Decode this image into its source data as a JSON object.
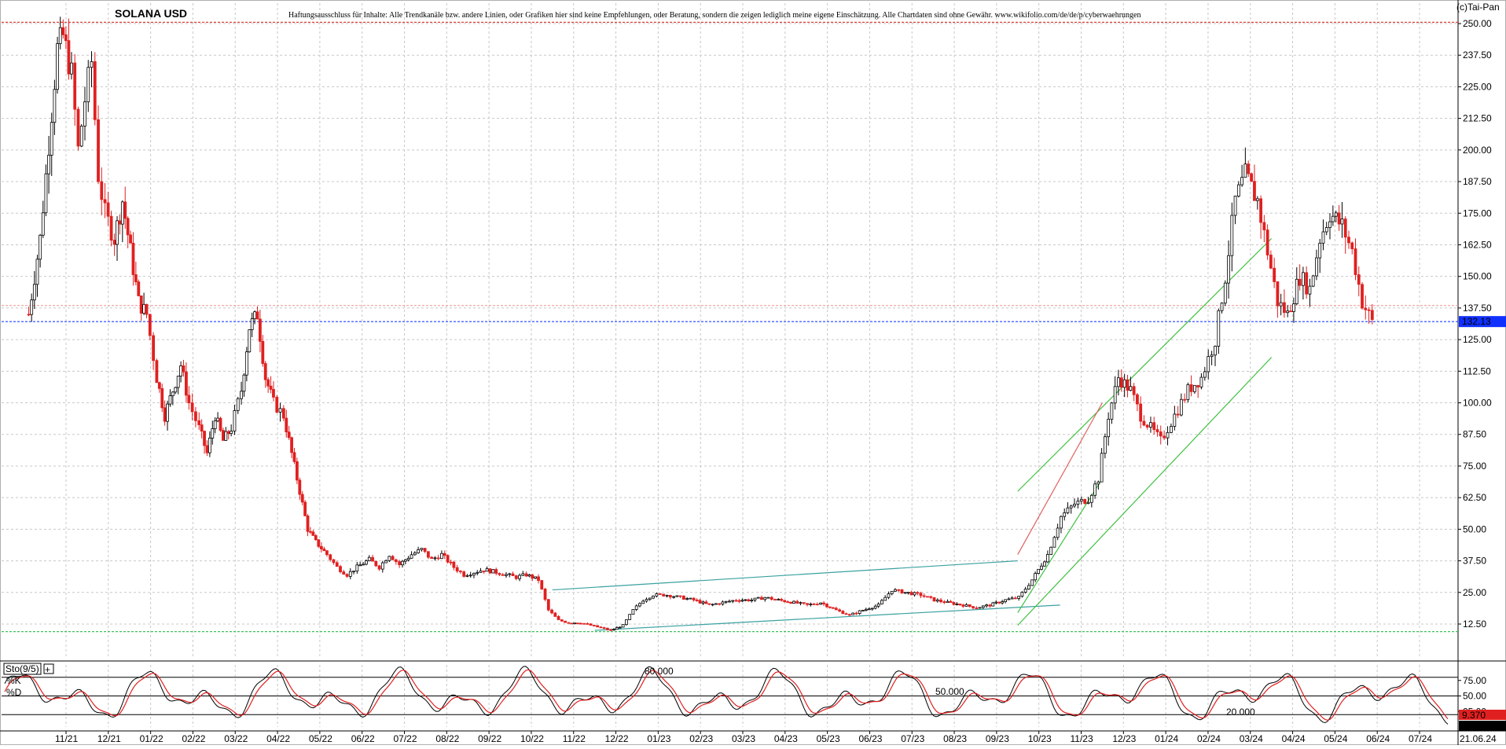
{
  "chart_data": {
    "type": "candlestick",
    "symbol": "SOLANA USD",
    "disclaimer": "Haftungsausschluss für Inhalte: Alle Trendkanäle bzw. andere Linien, oder Grafiken hier sind keine Empfehlungen, oder Beratung, sondern die zeigen lediglich meine eigene Einschätzung. Alle Chartdaten sind ohne Gewähr. www.wikifolio.com/de/de/p/cyberwaehrungen",
    "copyright": "(c)Tai-Pan",
    "y_ticks": [
      "250.00",
      "237.50",
      "225.00",
      "212.50",
      "200.00",
      "187.50",
      "175.00",
      "162.50",
      "150.00",
      "137.50",
      "125.00",
      "112.50",
      "100.00",
      "87.50",
      "75.00",
      "62.50",
      "50.00",
      "37.50",
      "25.00",
      "12.50"
    ],
    "ylim": [
      0,
      250
    ],
    "x_ticks": [
      "11/21",
      "12/21",
      "01/22",
      "02/22",
      "03/22",
      "04/22",
      "05/22",
      "06/22",
      "07/22",
      "08/22",
      "09/22",
      "10/22",
      "11/22",
      "12/22",
      "01/23",
      "02/23",
      "03/23",
      "04/23",
      "05/23",
      "06/23",
      "07/23",
      "08/23",
      "09/23",
      "10/23",
      "11/23",
      "12/23",
      "01/24",
      "02/24",
      "03/24",
      "04/24",
      "05/24",
      "06/24",
      "07/24"
    ],
    "x_last_date": "21.06.24",
    "last_price": "132.13",
    "price_path": [
      [
        "11/21",
        135
      ],
      [
        "11/21",
        150
      ],
      [
        "11/21",
        165
      ],
      [
        "11/21",
        190
      ],
      [
        "11/21",
        215
      ],
      [
        "11/21",
        240
      ],
      [
        "11/21",
        245
      ],
      [
        "12/21",
        230
      ],
      [
        "12/21",
        200
      ],
      [
        "12/21",
        220
      ],
      [
        "12/21",
        235
      ],
      [
        "12/21",
        190
      ],
      [
        "12/21",
        175
      ],
      [
        "01/22",
        165
      ],
      [
        "01/22",
        180
      ],
      [
        "01/22",
        160
      ],
      [
        "01/22",
        140
      ],
      [
        "01/22",
        135
      ],
      [
        "02/22",
        110
      ],
      [
        "02/22",
        95
      ],
      [
        "02/22",
        105
      ],
      [
        "02/22",
        115
      ],
      [
        "02/22",
        100
      ],
      [
        "03/22",
        90
      ],
      [
        "03/22",
        80
      ],
      [
        "03/22",
        95
      ],
      [
        "03/22",
        85
      ],
      [
        "03/22",
        90
      ],
      [
        "04/22",
        105
      ],
      [
        "04/22",
        130
      ],
      [
        "04/22",
        135
      ],
      [
        "04/22",
        110
      ],
      [
        "04/22",
        100
      ],
      [
        "05/22",
        95
      ],
      [
        "05/22",
        80
      ],
      [
        "05/22",
        65
      ],
      [
        "05/22",
        50
      ],
      [
        "05/22",
        45
      ],
      [
        "06/22",
        40
      ],
      [
        "06/22",
        35
      ],
      [
        "06/22",
        32
      ],
      [
        "06/22",
        35
      ],
      [
        "07/22",
        38
      ],
      [
        "07/22",
        35
      ],
      [
        "07/22",
        40
      ],
      [
        "07/22",
        36
      ],
      [
        "08/22",
        40
      ],
      [
        "08/22",
        42
      ],
      [
        "08/22",
        38
      ],
      [
        "08/22",
        40
      ],
      [
        "09/22",
        35
      ],
      [
        "09/22",
        32
      ],
      [
        "09/22",
        33
      ],
      [
        "09/22",
        34
      ],
      [
        "10/22",
        33
      ],
      [
        "10/22",
        32
      ],
      [
        "10/22",
        31
      ],
      [
        "10/22",
        32
      ],
      [
        "11/22",
        30
      ],
      [
        "11/22",
        18
      ],
      [
        "11/22",
        14
      ],
      [
        "11/22",
        13
      ],
      [
        "12/22",
        13
      ],
      [
        "12/22",
        12
      ],
      [
        "12/22",
        11
      ],
      [
        "12/22",
        10
      ],
      [
        "01/23",
        12
      ],
      [
        "01/23",
        18
      ],
      [
        "01/23",
        22
      ],
      [
        "01/23",
        24
      ],
      [
        "02/23",
        24
      ],
      [
        "02/23",
        23
      ],
      [
        "02/23",
        22
      ],
      [
        "03/23",
        20
      ],
      [
        "03/23",
        21
      ],
      [
        "03/23",
        22
      ],
      [
        "04/23",
        22
      ],
      [
        "04/23",
        23
      ],
      [
        "04/23",
        22
      ],
      [
        "05/23",
        21
      ],
      [
        "05/23",
        20
      ],
      [
        "05/23",
        21
      ],
      [
        "06/23",
        18
      ],
      [
        "06/23",
        16
      ],
      [
        "06/23",
        18
      ],
      [
        "07/23",
        20
      ],
      [
        "07/23",
        26
      ],
      [
        "07/23",
        25
      ],
      [
        "08/23",
        24
      ],
      [
        "08/23",
        22
      ],
      [
        "08/23",
        21
      ],
      [
        "09/23",
        20
      ],
      [
        "09/23",
        19
      ],
      [
        "09/23",
        20
      ],
      [
        "10/23",
        22
      ],
      [
        "10/23",
        23
      ],
      [
        "10/23",
        30
      ],
      [
        "11/23",
        40
      ],
      [
        "11/23",
        55
      ],
      [
        "11/23",
        60
      ],
      [
        "12/23",
        62
      ],
      [
        "12/23",
        70
      ],
      [
        "12/23",
        95
      ],
      [
        "12/23",
        110
      ],
      [
        "01/24",
        105
      ],
      [
        "01/24",
        95
      ],
      [
        "01/24",
        90
      ],
      [
        "01/24",
        85
      ],
      [
        "02/24",
        95
      ],
      [
        "02/24",
        105
      ],
      [
        "02/24",
        110
      ],
      [
        "03/24",
        125
      ],
      [
        "03/24",
        150
      ],
      [
        "03/24",
        180
      ],
      [
        "03/24",
        190
      ],
      [
        "04/24",
        180
      ],
      [
        "04/24",
        160
      ],
      [
        "04/24",
        140
      ],
      [
        "04/24",
        135
      ],
      [
        "05/24",
        150
      ],
      [
        "05/24",
        145
      ],
      [
        "05/24",
        165
      ],
      [
        "05/24",
        175
      ],
      [
        "06/24",
        170
      ],
      [
        "06/24",
        160
      ],
      [
        "06/24",
        140
      ],
      [
        "06/24",
        132
      ]
    ],
    "hlines": [
      {
        "value": 250.5,
        "color": "#e04040"
      },
      {
        "value": 138.5,
        "color": "#f0a0a0"
      },
      {
        "value": 132.13,
        "color": "#2040ff"
      },
      {
        "value": 9.5,
        "color": "#40c060"
      }
    ],
    "trendlines": [
      {
        "color": "#3aa0a0",
        "points": [
          [
            "11/22",
            26
          ],
          [
            "10/23",
            37.5
          ]
        ]
      },
      {
        "color": "#3aa0a0",
        "points": [
          [
            "12/22",
            10
          ],
          [
            "11/23",
            20
          ]
        ]
      },
      {
        "color": "#40c040",
        "points": [
          [
            "10/23",
            65
          ],
          [
            "04/24",
            165
          ]
        ]
      },
      {
        "color": "#40c040",
        "points": [
          [
            "10/23",
            12
          ],
          [
            "04/24",
            118
          ]
        ]
      },
      {
        "color": "#40c040",
        "points": [
          [
            "10/23",
            17
          ],
          [
            "12/23",
            70
          ]
        ]
      },
      {
        "color": "#e06060",
        "points": [
          [
            "10/23",
            40
          ],
          [
            "12/23",
            100
          ]
        ]
      }
    ],
    "indicator": {
      "name": "Sto(9/5)",
      "k_label": "%K",
      "d_label": "%D",
      "levels": [
        {
          "label": "80.000",
          "value": 80
        },
        {
          "label": "50.000",
          "value": 50
        },
        {
          "label": "20.000",
          "value": 20
        }
      ],
      "y_ticks": [
        "75.00",
        "50.00",
        "25.00"
      ],
      "last_d": "9.370",
      "last_k": "8.331"
    },
    "colors": {
      "up": "#000000",
      "down": "#e02020",
      "k_line": "#000000",
      "d_line": "#e02020",
      "last_price_bg": "#1030ff",
      "last_d_bg": "#e02020",
      "last_k_bg": "#000000"
    }
  }
}
